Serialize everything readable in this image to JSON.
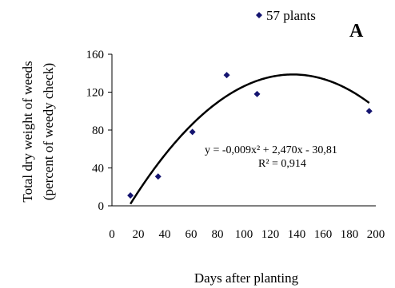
{
  "chart_data": {
    "type": "scatter",
    "panel_label": "A",
    "xlabel": "Days after planting",
    "ylabel_line1": "Total dry weight of weeds",
    "ylabel_line2": "(percent of weedy check)",
    "xlim": [
      0,
      200
    ],
    "ylim": [
      0,
      160
    ],
    "x_ticks": [
      0,
      20,
      40,
      60,
      80,
      100,
      120,
      140,
      160,
      180,
      200
    ],
    "y_ticks": [
      0,
      40,
      80,
      120,
      160
    ],
    "grid": false,
    "legend_position": "top-right",
    "series": [
      {
        "name": "57 plants",
        "marker": "diamond",
        "color": "#141470",
        "x": [
          14,
          35,
          61,
          87,
          110,
          195
        ],
        "y": [
          11,
          31,
          78,
          138,
          118,
          100
        ]
      }
    ],
    "trendline": {
      "type": "polynomial",
      "coefficients": [
        -0.009,
        2.47,
        -30.81
      ],
      "x_range": [
        14,
        195
      ],
      "equation_text": "y = -0,009x² + 2,470x - 30,81",
      "r2_text": "R² = 0,914",
      "color": "#000000"
    }
  }
}
